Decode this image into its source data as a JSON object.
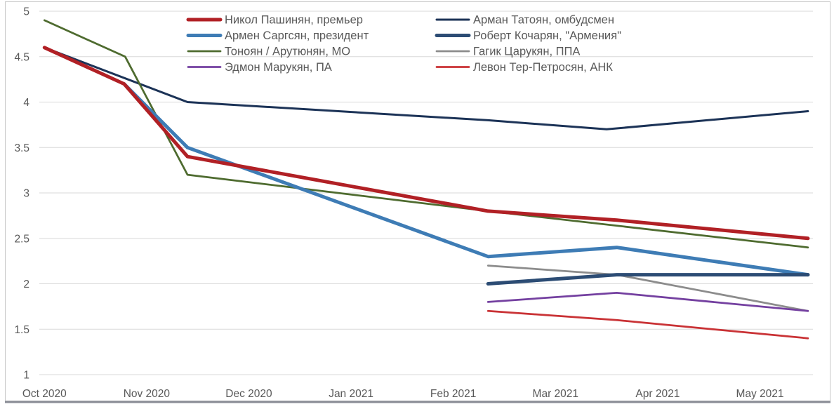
{
  "frame": {
    "border_color": "#C8C8C8",
    "bottom_bar_color": "#8A8D96",
    "background": "#FFFFFF"
  },
  "chart_data": {
    "type": "line",
    "title": "",
    "axis_text_color": "#595959",
    "grid": {
      "horizontal": true,
      "vertical": false,
      "color": "#D9D9D9"
    },
    "legend": {
      "position": "top-center",
      "columns": 2,
      "transparent": true,
      "text_color": "#595959"
    },
    "x_axis": {
      "unit": "months since Oct 2020",
      "range_months": [
        -0.05,
        7.52
      ],
      "ticks": [
        {
          "m": 0,
          "label": "Oct 2020"
        },
        {
          "m": 1,
          "label": "Nov 2020"
        },
        {
          "m": 2,
          "label": "Dec 2020"
        },
        {
          "m": 3,
          "label": "Jan 2021"
        },
        {
          "m": 4,
          "label": "Feb 2021"
        },
        {
          "m": 5,
          "label": "Mar 2021"
        },
        {
          "m": 6,
          "label": "Apr 2021"
        },
        {
          "m": 7,
          "label": "May 2021"
        }
      ]
    },
    "y_axis": {
      "min": 1,
      "max": 5,
      "step": 0.5,
      "ticks": [
        {
          "v": 5,
          "label": "5"
        },
        {
          "v": 4.5,
          "label": "4.5"
        },
        {
          "v": 4,
          "label": "4"
        },
        {
          "v": 3.5,
          "label": "3.5"
        },
        {
          "v": 3,
          "label": "3"
        },
        {
          "v": 2.5,
          "label": "2.5"
        },
        {
          "v": 2,
          "label": "2"
        },
        {
          "v": 1.5,
          "label": "1.5"
        },
        {
          "v": 1,
          "label": "1"
        }
      ]
    },
    "draw_order": [
      "tatoyan",
      "tonoyan-harutyunyan",
      "sargsyan",
      "pashinyan",
      "tsarukyan",
      "kocharyan",
      "marukyan",
      "ter-petrosyan"
    ],
    "series": [
      {
        "key": "pashinyan",
        "name": "Никол Пашинян, премьер",
        "color": "#B12025",
        "width": 5,
        "points": [
          [
            0,
            4.6
          ],
          [
            0.78,
            4.2
          ],
          [
            1.4,
            3.4
          ],
          [
            4.34,
            2.8
          ],
          [
            5.6,
            2.7
          ],
          [
            7.47,
            2.5
          ]
        ]
      },
      {
        "key": "tatoyan",
        "name": "Арман Татоян, омбудсмен",
        "color": "#1C3357",
        "width": 3,
        "points": [
          [
            0,
            4.6
          ],
          [
            1.4,
            4.0
          ],
          [
            4.34,
            3.8
          ],
          [
            5.5,
            3.7
          ],
          [
            7.47,
            3.9
          ]
        ]
      },
      {
        "key": "sargsyan",
        "name": "Армен Саргсян, президент",
        "color": "#3E7CB5",
        "width": 5,
        "points": [
          [
            0.78,
            4.2
          ],
          [
            1.4,
            3.5
          ],
          [
            4.34,
            2.3
          ],
          [
            5.6,
            2.4
          ],
          [
            7.47,
            2.1
          ]
        ]
      },
      {
        "key": "kocharyan",
        "name": "Роберт Кочарян, \"Армения\"",
        "color": "#2C4C74",
        "width": 5,
        "points": [
          [
            4.34,
            2.0
          ],
          [
            5.6,
            2.1
          ],
          [
            7.47,
            2.1
          ]
        ]
      },
      {
        "key": "tonoyan-harutyunyan",
        "name": "Тоноян / Арутюнян, МО",
        "color": "#4E6B2F",
        "width": 2.75,
        "points": [
          [
            0,
            4.9
          ],
          [
            0.79,
            4.5
          ],
          [
            1.4,
            3.2
          ],
          [
            4.34,
            2.8
          ],
          [
            7.47,
            2.4
          ]
        ]
      },
      {
        "key": "tsarukyan",
        "name": "Гагик Царукян, ППА",
        "color": "#8C8C8C",
        "width": 2.75,
        "points": [
          [
            4.34,
            2.2
          ],
          [
            5.6,
            2.1
          ],
          [
            7.47,
            1.7
          ]
        ]
      },
      {
        "key": "marukyan",
        "name": "Эдмон Марукян, ПА",
        "color": "#7440A0",
        "width": 2.75,
        "points": [
          [
            4.34,
            1.8
          ],
          [
            5.6,
            1.9
          ],
          [
            7.47,
            1.7
          ]
        ]
      },
      {
        "key": "ter-petrosyan",
        "name": "Левон Тер-Петросян, АНК",
        "color": "#C93235",
        "width": 2.75,
        "points": [
          [
            4.34,
            1.7
          ],
          [
            5.6,
            1.6
          ],
          [
            7.47,
            1.4
          ]
        ]
      }
    ]
  }
}
